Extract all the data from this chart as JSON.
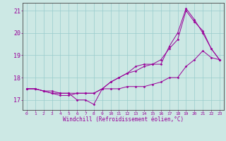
{
  "xlabel": "Windchill (Refroidissement éolien,°C)",
  "bg_color": "#cce8e4",
  "line_color": "#990099",
  "grid_color": "#99cccc",
  "x_ticks": [
    0,
    1,
    2,
    3,
    4,
    5,
    6,
    7,
    8,
    9,
    10,
    11,
    12,
    13,
    14,
    15,
    16,
    17,
    18,
    19,
    20,
    21,
    22,
    23
  ],
  "y_ticks": [
    17,
    18,
    19,
    20,
    21
  ],
  "xlim": [
    -0.5,
    23.5
  ],
  "ylim": [
    16.55,
    21.35
  ],
  "series1_x": [
    0,
    1,
    2,
    3,
    4,
    5,
    6,
    7,
    8,
    9,
    10,
    11,
    12,
    13,
    14,
    15,
    16,
    17,
    18,
    19,
    20,
    21,
    22,
    23
  ],
  "series1_y": [
    17.5,
    17.5,
    17.4,
    17.4,
    17.3,
    17.3,
    17.0,
    17.0,
    16.8,
    17.5,
    17.5,
    17.5,
    17.6,
    17.6,
    17.6,
    17.7,
    17.8,
    18.0,
    18.0,
    18.5,
    18.8,
    19.2,
    18.9,
    18.8
  ],
  "series2_x": [
    0,
    1,
    2,
    3,
    4,
    5,
    6,
    7,
    8,
    9,
    10,
    11,
    12,
    13,
    14,
    15,
    16,
    17,
    18,
    19,
    20,
    21,
    22,
    23
  ],
  "series2_y": [
    17.5,
    17.5,
    17.4,
    17.3,
    17.3,
    17.3,
    17.3,
    17.3,
    17.3,
    17.5,
    17.8,
    18.0,
    18.2,
    18.3,
    18.5,
    18.6,
    18.8,
    19.3,
    19.7,
    21.0,
    20.5,
    20.1,
    19.3,
    18.8
  ],
  "series3_x": [
    0,
    1,
    2,
    3,
    4,
    5,
    6,
    7,
    8,
    9,
    10,
    11,
    12,
    13,
    14,
    15,
    16,
    17,
    18,
    19,
    20,
    21,
    22,
    23
  ],
  "series3_y": [
    17.5,
    17.5,
    17.4,
    17.3,
    17.2,
    17.2,
    17.3,
    17.3,
    17.3,
    17.5,
    17.8,
    18.0,
    18.2,
    18.5,
    18.6,
    18.6,
    18.6,
    19.4,
    20.0,
    21.1,
    20.6,
    20.0,
    19.3,
    18.8
  ]
}
